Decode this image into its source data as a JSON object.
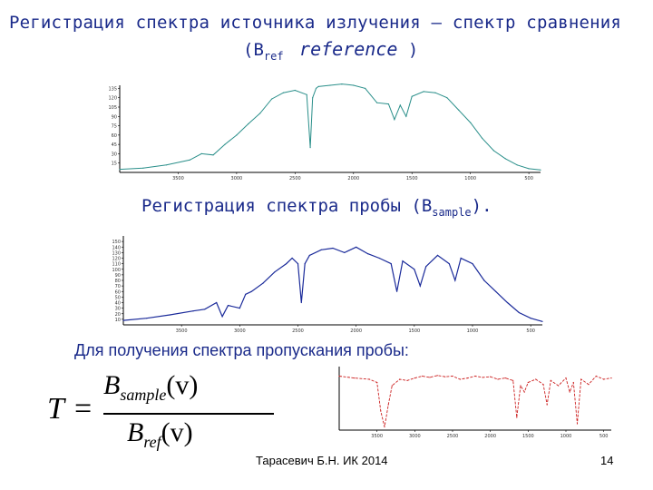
{
  "slide": {
    "title_line1": "Регистрация спектра источника излучения – спектр сравнения",
    "title_line2_open": "(B",
    "title_line2_sub": "ref",
    "title_line2_word": "reference",
    "title_line2_close": ")",
    "subtitle_main": "Регистрация спектра пробы (B",
    "subtitle_sub": "sample",
    "subtitle_close": ").",
    "heading": "Для получения спектра пропускания пробы:",
    "formula": {
      "lhs": "T",
      "eq": "=",
      "num_var": "B",
      "num_sub": "sample",
      "num_arg": "(v)",
      "den_var": "B",
      "den_sub": "ref",
      "den_arg": "(v)"
    },
    "footer_author": "Тарасевич Б.Н. ИК 2014",
    "page_number": "14"
  },
  "colors": {
    "text": "#1a2a8a",
    "ref_curve": "#2a8f8a",
    "sample_curve": "#1a2a9a",
    "transmission_curve": "#cc2020"
  },
  "chart_data": [
    {
      "type": "line",
      "title": "",
      "xlabel": "",
      "ylabel": "",
      "x_ticks": [
        "3500",
        "3000",
        "2500",
        "2000",
        "1500",
        "1000",
        "500"
      ],
      "y_ticks": [
        "15",
        "30",
        "45",
        "60",
        "75",
        "90",
        "105",
        "120",
        "135"
      ],
      "xlim": [
        4000,
        400
      ],
      "ylim": [
        0,
        140
      ],
      "series": [
        {
          "x": [
            4000,
            3800,
            3600,
            3400,
            3300,
            3200,
            3100,
            3000,
            2900,
            2800,
            2700,
            2600,
            2500,
            2400,
            2370,
            2350,
            2320,
            2300,
            2200,
            2100,
            2000,
            1900,
            1800,
            1700,
            1650,
            1600,
            1550,
            1500,
            1400,
            1300,
            1200,
            1100,
            1000,
            900,
            800,
            700,
            600,
            500,
            400
          ],
          "y": [
            5,
            7,
            12,
            20,
            30,
            28,
            45,
            60,
            78,
            95,
            118,
            128,
            132,
            125,
            40,
            120,
            135,
            138,
            140,
            142,
            140,
            135,
            112,
            110,
            85,
            108,
            90,
            122,
            130,
            128,
            120,
            100,
            80,
            55,
            35,
            22,
            12,
            6,
            4
          ]
        }
      ]
    },
    {
      "type": "line",
      "title": "",
      "xlabel": "",
      "ylabel": "",
      "x_ticks": [
        "3500",
        "3000",
        "2500",
        "2000",
        "1500",
        "1000",
        "500"
      ],
      "y_ticks": [
        "10",
        "20",
        "30",
        "40",
        "50",
        "60",
        "70",
        "80",
        "90",
        "100",
        "110",
        "120",
        "130",
        "140",
        "150"
      ],
      "xlim": [
        4000,
        400
      ],
      "ylim": [
        0,
        160
      ],
      "series": [
        {
          "x": [
            4000,
            3800,
            3600,
            3400,
            3300,
            3200,
            3150,
            3100,
            3000,
            2950,
            2900,
            2800,
            2700,
            2600,
            2550,
            2500,
            2470,
            2440,
            2400,
            2300,
            2200,
            2100,
            2000,
            1900,
            1800,
            1700,
            1650,
            1600,
            1500,
            1450,
            1400,
            1300,
            1200,
            1150,
            1100,
            1000,
            900,
            800,
            700,
            600,
            500,
            400
          ],
          "y": [
            8,
            12,
            18,
            25,
            28,
            40,
            15,
            35,
            30,
            55,
            60,
            75,
            95,
            110,
            120,
            110,
            40,
            110,
            125,
            135,
            138,
            130,
            140,
            128,
            120,
            110,
            60,
            115,
            100,
            70,
            105,
            125,
            110,
            80,
            120,
            110,
            80,
            60,
            40,
            22,
            12,
            6
          ]
        }
      ]
    },
    {
      "type": "line",
      "title": "",
      "xlabel": "",
      "ylabel": "",
      "x_ticks": [
        "3500",
        "3000",
        "2500",
        "2000",
        "1500",
        "1000",
        "500"
      ],
      "xlim": [
        4000,
        400
      ],
      "ylim": [
        0,
        100
      ],
      "series": [
        {
          "x": [
            4000,
            3800,
            3600,
            3500,
            3450,
            3400,
            3350,
            3300,
            3200,
            3100,
            3000,
            2900,
            2800,
            2700,
            2600,
            2500,
            2400,
            2300,
            2200,
            2100,
            2000,
            1900,
            1800,
            1700,
            1650,
            1600,
            1550,
            1500,
            1400,
            1300,
            1250,
            1200,
            1100,
            1000,
            950,
            900,
            850,
            800,
            700,
            600,
            500,
            400
          ],
          "y": [
            85,
            82,
            80,
            75,
            30,
            5,
            40,
            70,
            80,
            78,
            82,
            85,
            83,
            86,
            84,
            85,
            80,
            82,
            85,
            83,
            84,
            80,
            82,
            78,
            20,
            70,
            60,
            75,
            80,
            72,
            40,
            78,
            70,
            82,
            60,
            75,
            10,
            80,
            72,
            85,
            80,
            82
          ]
        }
      ]
    }
  ]
}
